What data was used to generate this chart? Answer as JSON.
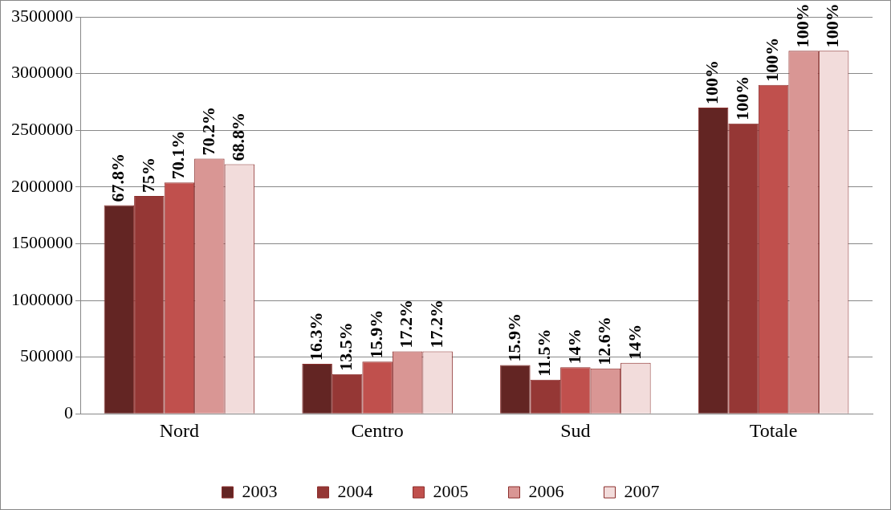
{
  "chart_data": {
    "type": "bar",
    "categories": [
      "Nord",
      "Centro",
      "Sud",
      "Totale"
    ],
    "series": [
      {
        "name": "2003",
        "color": "#632523",
        "values": [
          1840000,
          440000,
          430000,
          2700000
        ]
      },
      {
        "name": "2004",
        "color": "#953735",
        "values": [
          1920000,
          350000,
          300000,
          2560000
        ]
      },
      {
        "name": "2005",
        "color": "#c0504d",
        "values": [
          2040000,
          460000,
          410000,
          2900000
        ]
      },
      {
        "name": "2006",
        "color": "#d99694",
        "values": [
          2250000,
          550000,
          400000,
          3200000
        ]
      },
      {
        "name": "2007",
        "color": "#f2dcdb",
        "values": [
          2200000,
          550000,
          450000,
          3200000
        ]
      }
    ],
    "annotations": [
      "67.8%",
      "75%",
      "70.1%",
      "70.2%",
      "68.8%",
      "16.3%",
      "13.5%",
      "15.9%",
      "17.2%",
      "17.2%",
      "15.9%",
      "11.5%",
      "14%",
      "12.6%",
      "14%",
      "100%",
      "100%",
      "100%",
      "100%",
      "100%"
    ],
    "ylim": [
      0,
      3500000
    ],
    "yticks": [
      0,
      500000,
      1000000,
      1500000,
      2000000,
      2500000,
      3000000,
      3500000
    ],
    "grid": "y",
    "legend": "bottom"
  }
}
